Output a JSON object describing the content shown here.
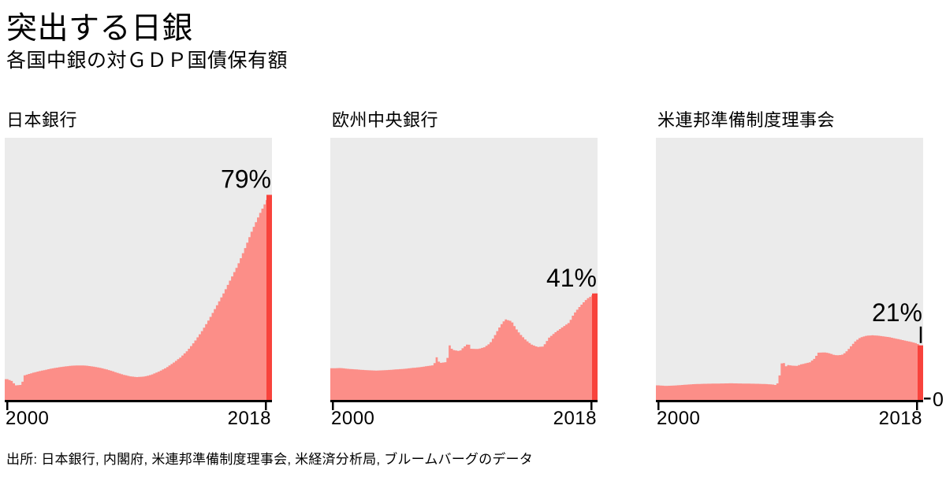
{
  "header": {
    "title": "突出する日銀",
    "subtitle": "各国中銀の対ＧＤＰ国債保有額"
  },
  "source": "出所: 日本銀行, 内閣府, 米連邦準備制度理事会, 米経済分析局, ブルームバーグのデータ",
  "colors": {
    "area": "#FC8E88",
    "current_bar": "#F8433C",
    "plot_bg": "#EBEBEB",
    "axis": "#000000",
    "text": "#000000"
  },
  "chart_data": [
    {
      "type": "area",
      "title": "日本銀行",
      "value_label": "79%",
      "current_value": 79,
      "x_ticks": [
        "2000",
        "2018"
      ],
      "x_range": [
        2000,
        2018.4
      ],
      "y_range": [
        0,
        101
      ],
      "grid": false,
      "leader_line": false,
      "zero_label": null,
      "series": [
        [
          2000,
          8
        ],
        [
          2000.35,
          7.2
        ],
        [
          2000.55,
          5.6
        ],
        [
          2001,
          5.8
        ],
        [
          2001.15,
          9.4
        ],
        [
          2001.5,
          10
        ],
        [
          2002,
          10.8
        ],
        [
          2002.5,
          11.4
        ],
        [
          2003,
          12
        ],
        [
          2003.5,
          12.5
        ],
        [
          2004,
          12.9
        ],
        [
          2004.5,
          13.2
        ],
        [
          2005,
          13.3
        ],
        [
          2005.5,
          13.2
        ],
        [
          2006,
          12.8
        ],
        [
          2006.5,
          12.3
        ],
        [
          2007,
          11.6
        ],
        [
          2007.5,
          10.7
        ],
        [
          2008,
          9.8
        ],
        [
          2008.5,
          9.1
        ],
        [
          2009,
          8.8
        ],
        [
          2009.5,
          9
        ],
        [
          2010,
          9.7
        ],
        [
          2010.5,
          10.9
        ],
        [
          2011,
          12.3
        ],
        [
          2011.5,
          14.2
        ],
        [
          2012,
          16.3
        ],
        [
          2012.5,
          19
        ],
        [
          2013,
          22.5
        ],
        [
          2013.5,
          26.5
        ],
        [
          2014,
          31
        ],
        [
          2014.5,
          36
        ],
        [
          2015,
          41
        ],
        [
          2015.5,
          46.5
        ],
        [
          2016,
          52
        ],
        [
          2016.5,
          58.5
        ],
        [
          2017,
          65.5
        ],
        [
          2017.5,
          71.5
        ],
        [
          2018,
          77
        ],
        [
          2018.2,
          79
        ]
      ]
    },
    {
      "type": "area",
      "title": "欧州中央銀行",
      "value_label": "41%",
      "current_value": 41,
      "x_ticks": [
        "2000",
        "2018"
      ],
      "x_range": [
        2000,
        2018.4
      ],
      "y_range": [
        0,
        101
      ],
      "grid": false,
      "leader_line": false,
      "zero_label": null,
      "series": [
        [
          2000,
          12.2
        ],
        [
          2000.5,
          12.3
        ],
        [
          2001,
          12
        ],
        [
          2001.5,
          11.8
        ],
        [
          2002,
          11.6
        ],
        [
          2002.5,
          11.4
        ],
        [
          2003,
          11.3
        ],
        [
          2003.5,
          11.4
        ],
        [
          2004,
          11.6
        ],
        [
          2004.5,
          11.8
        ],
        [
          2005,
          12
        ],
        [
          2005.5,
          12.3
        ],
        [
          2006,
          12.6
        ],
        [
          2006.5,
          13
        ],
        [
          2007,
          13.4
        ],
        [
          2007.2,
          16.4
        ],
        [
          2007.4,
          14.2
        ],
        [
          2007.9,
          14.6
        ],
        [
          2008.1,
          21
        ],
        [
          2008.3,
          19.3
        ],
        [
          2008.8,
          18.8
        ],
        [
          2009,
          19.9
        ],
        [
          2009.4,
          21.8
        ],
        [
          2009.6,
          19.7
        ],
        [
          2010.1,
          19.6
        ],
        [
          2010.5,
          20.3
        ],
        [
          2010.9,
          21.8
        ],
        [
          2011.2,
          24.5
        ],
        [
          2011.5,
          27.5
        ],
        [
          2011.8,
          30
        ],
        [
          2012,
          31
        ],
        [
          2012.4,
          30.3
        ],
        [
          2012.7,
          27.5
        ],
        [
          2013,
          25.3
        ],
        [
          2013.4,
          23
        ],
        [
          2013.8,
          21.3
        ],
        [
          2014.2,
          20.4
        ],
        [
          2014.6,
          20.6
        ],
        [
          2015,
          24
        ],
        [
          2015.5,
          26.3
        ],
        [
          2016,
          28.3
        ],
        [
          2016.4,
          29.8
        ],
        [
          2016.7,
          33
        ],
        [
          2017.1,
          35.8
        ],
        [
          2017.6,
          38.8
        ],
        [
          2018,
          40.3
        ],
        [
          2018.2,
          41
        ]
      ]
    },
    {
      "type": "area",
      "title": "米連邦準備制度理事会",
      "value_label": "21%",
      "current_value": 21,
      "x_ticks": [
        "2000",
        "2018"
      ],
      "x_range": [
        2000,
        2018.4
      ],
      "y_range": [
        0,
        101
      ],
      "grid": false,
      "leader_line": true,
      "zero_label": "0",
      "series": [
        [
          2000,
          5.6
        ],
        [
          2000.5,
          5.4
        ],
        [
          2001,
          5.5
        ],
        [
          2001.5,
          5.7
        ],
        [
          2002,
          5.9
        ],
        [
          2002.5,
          6.1
        ],
        [
          2003,
          6.2
        ],
        [
          2004,
          6.3
        ],
        [
          2005,
          6.4
        ],
        [
          2006,
          6.3
        ],
        [
          2007,
          6.2
        ],
        [
          2007.5,
          6.1
        ],
        [
          2008,
          5.9
        ],
        [
          2008.2,
          5.6
        ],
        [
          2008.35,
          7.9
        ],
        [
          2008.6,
          15.6
        ],
        [
          2008.8,
          12.8
        ],
        [
          2009,
          13.4
        ],
        [
          2009.3,
          13.2
        ],
        [
          2009.6,
          13.1
        ],
        [
          2009.9,
          13.7
        ],
        [
          2010.2,
          14.1
        ],
        [
          2010.5,
          14.5
        ],
        [
          2010.8,
          15.8
        ],
        [
          2011.1,
          18.2
        ],
        [
          2011.6,
          18.3
        ],
        [
          2011.9,
          17.9
        ],
        [
          2012.2,
          17.3
        ],
        [
          2012.5,
          17.2
        ],
        [
          2012.8,
          17.5
        ],
        [
          2013.1,
          19
        ],
        [
          2013.4,
          21
        ],
        [
          2013.7,
          22.8
        ],
        [
          2014,
          24
        ],
        [
          2014.4,
          24.7
        ],
        [
          2014.8,
          24.9
        ],
        [
          2015.2,
          24.8
        ],
        [
          2015.6,
          24.5
        ],
        [
          2016,
          24.2
        ],
        [
          2016.5,
          23.6
        ],
        [
          2017,
          23
        ],
        [
          2017.4,
          22.5
        ],
        [
          2017.8,
          22
        ],
        [
          2018.1,
          21.3
        ],
        [
          2018.2,
          21
        ]
      ]
    }
  ]
}
